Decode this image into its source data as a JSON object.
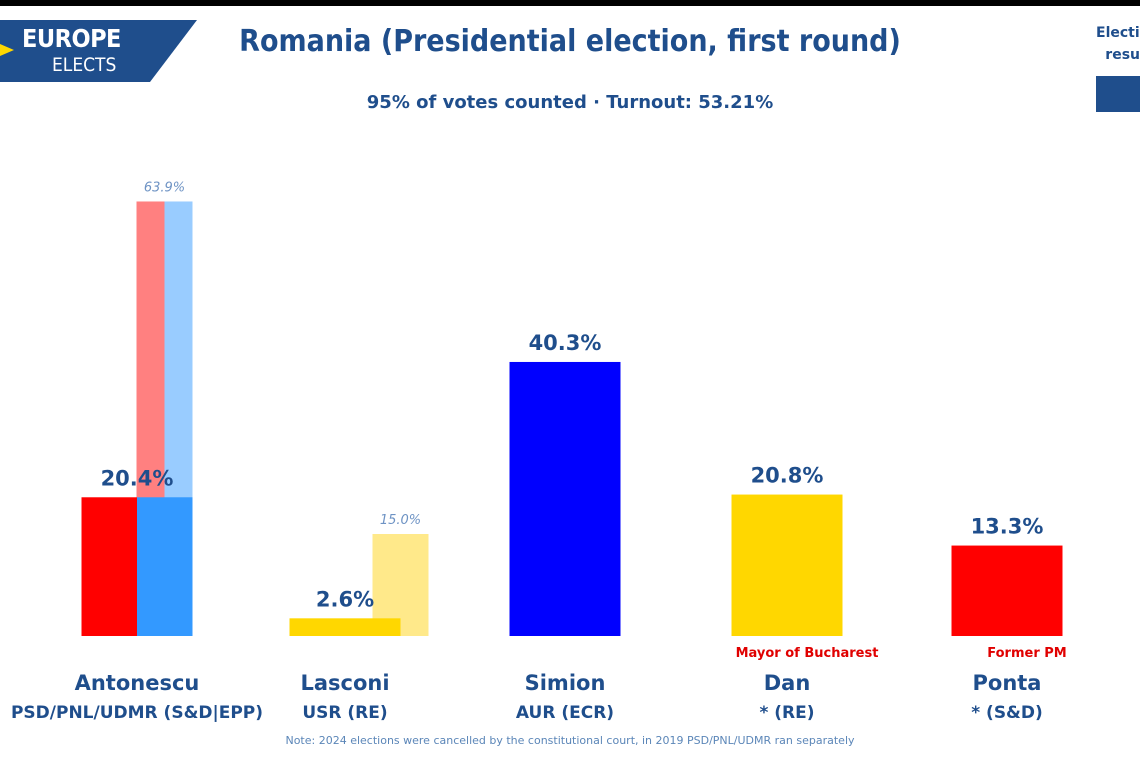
{
  "logo": {
    "line1": "EUROPE",
    "line2": "ELECTS"
  },
  "title": "Romania (Presidential election, first round)",
  "subtitle": "95% of votes counted · Turnout: 53.21%",
  "corner_text": [
    "Electio",
    "resu"
  ],
  "note": "Note: 2024 elections were cancelled by the constitutional court, in 2019 PSD/PNL/UDMR ran separately",
  "chart_data": {
    "type": "bar",
    "ylim": [
      0,
      70
    ],
    "candidates": [
      {
        "name": "Antonescu",
        "party": "PSD/PNL/UDMR (S&D|EPP)",
        "value": 20.4,
        "value_label": "20.4%",
        "segment_colors": [
          "#FF0000",
          "#3399FF"
        ],
        "previous": {
          "value": 63.9,
          "label": "63.9%",
          "segment_colors": [
            "#FF8080",
            "#99CCFF"
          ]
        },
        "annotation": ""
      },
      {
        "name": "Lasconi",
        "party": "USR (RE)",
        "value": 2.6,
        "value_label": "2.6%",
        "segment_colors": [
          "#FFD700"
        ],
        "previous": {
          "value": 15.0,
          "label": "15.0%",
          "segment_colors": [
            "#FFE98A"
          ]
        },
        "annotation": ""
      },
      {
        "name": "Simion",
        "party": "AUR (ECR)",
        "value": 40.3,
        "value_label": "40.3%",
        "segment_colors": [
          "#0000FF"
        ],
        "previous": null,
        "annotation": ""
      },
      {
        "name": "Dan",
        "party": "* (RE)",
        "value": 20.8,
        "value_label": "20.8%",
        "segment_colors": [
          "#FFD700"
        ],
        "previous": null,
        "annotation": "Mayor of Bucharest"
      },
      {
        "name": "Ponta",
        "party": "* (S&D)",
        "value": 13.3,
        "value_label": "13.3%",
        "segment_colors": [
          "#FF0000"
        ],
        "previous": null,
        "annotation": "Former PM"
      }
    ]
  }
}
